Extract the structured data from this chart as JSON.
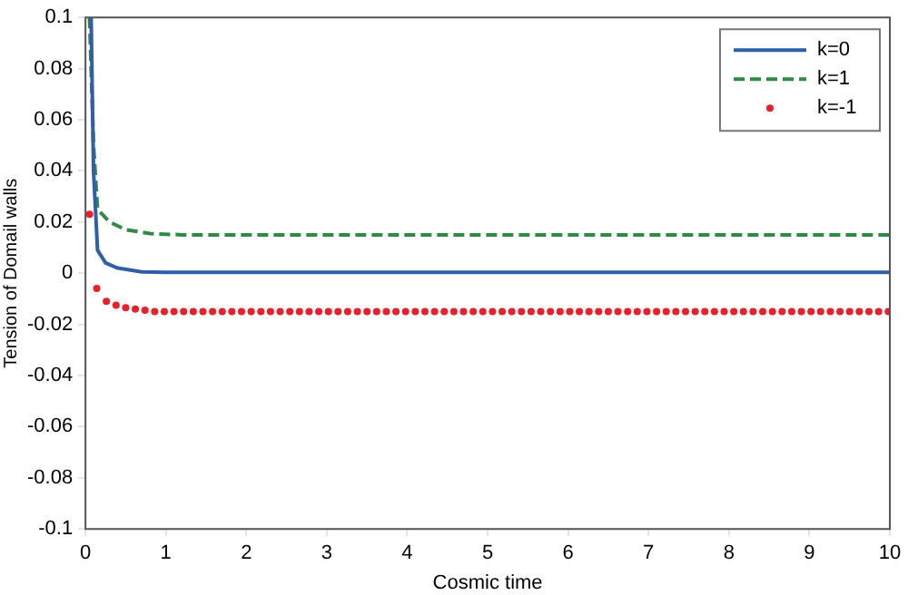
{
  "chart_data": {
    "type": "line",
    "xlabel": "Cosmic time",
    "ylabel": "Tension of Domail walls",
    "xlim": [
      0,
      10
    ],
    "ylim": [
      -0.1,
      0.1
    ],
    "xticks": [
      0,
      1,
      2,
      3,
      4,
      5,
      6,
      7,
      8,
      9,
      10
    ],
    "yticks": [
      -0.1,
      -0.08,
      -0.06,
      -0.04,
      -0.02,
      0,
      0.02,
      0.04,
      0.06,
      0.08,
      0.1
    ],
    "grid": false,
    "legend": "top right",
    "series": [
      {
        "name": "k=0",
        "color": "#2f5fa8",
        "line_style": "solid",
        "marker": "none",
        "x": [
          0.07,
          0.1,
          0.15,
          0.25,
          0.4,
          0.7,
          1,
          10
        ],
        "values": [
          0.1,
          0.04,
          0.009,
          0.004,
          0.002,
          0.0005,
          0.0003,
          0.0003
        ]
      },
      {
        "name": "k=1",
        "color": "#2e8b46",
        "line_style": "dashed",
        "marker": "none",
        "x": [
          0.05,
          0.1,
          0.15,
          0.3,
          0.5,
          0.8,
          1.2,
          10
        ],
        "values": [
          0.1,
          0.05,
          0.025,
          0.02,
          0.017,
          0.0155,
          0.015,
          0.015
        ]
      },
      {
        "name": "k=-1",
        "type": "scatter",
        "color": "#e8202a",
        "marker": "circle",
        "x": [
          0.05,
          0.14,
          0.26,
          0.38,
          0.5,
          0.62,
          0.74,
          0.86,
          0.98,
          1.1,
          1.22,
          1.34,
          1.46,
          1.58,
          1.7,
          1.82,
          1.94,
          2.06,
          2.18,
          2.3,
          2.42,
          2.54,
          2.66,
          2.78,
          2.9,
          3.02,
          3.14,
          3.26,
          3.38,
          3.5,
          3.62,
          3.74,
          3.86,
          3.98,
          4.1,
          4.22,
          4.34,
          4.46,
          4.58,
          4.7,
          4.82,
          4.94,
          5.06,
          5.18,
          5.3,
          5.42,
          5.54,
          5.66,
          5.78,
          5.9,
          6.02,
          6.14,
          6.26,
          6.38,
          6.5,
          6.62,
          6.74,
          6.86,
          6.98,
          7.1,
          7.22,
          7.34,
          7.46,
          7.58,
          7.7,
          7.82,
          7.94,
          8.06,
          8.18,
          8.3,
          8.42,
          8.54,
          8.66,
          8.78,
          8.9,
          9.02,
          9.14,
          9.26,
          9.38,
          9.5,
          9.62,
          9.74,
          9.86,
          9.98
        ],
        "values": [
          0.023,
          -0.006,
          -0.011,
          -0.0125,
          -0.0135,
          -0.014,
          -0.0145,
          -0.015,
          -0.015,
          -0.015,
          -0.015,
          -0.015,
          -0.015,
          -0.015,
          -0.015,
          -0.015,
          -0.015,
          -0.015,
          -0.015,
          -0.015,
          -0.015,
          -0.015,
          -0.015,
          -0.015,
          -0.015,
          -0.015,
          -0.015,
          -0.015,
          -0.015,
          -0.015,
          -0.015,
          -0.015,
          -0.015,
          -0.015,
          -0.015,
          -0.015,
          -0.015,
          -0.015,
          -0.015,
          -0.015,
          -0.015,
          -0.015,
          -0.015,
          -0.015,
          -0.015,
          -0.015,
          -0.015,
          -0.015,
          -0.015,
          -0.015,
          -0.015,
          -0.015,
          -0.015,
          -0.015,
          -0.015,
          -0.015,
          -0.015,
          -0.015,
          -0.015,
          -0.015,
          -0.015,
          -0.015,
          -0.015,
          -0.015,
          -0.015,
          -0.015,
          -0.015,
          -0.015,
          -0.015,
          -0.015,
          -0.015,
          -0.015,
          -0.015,
          -0.015,
          -0.015,
          -0.015,
          -0.015,
          -0.015,
          -0.015,
          -0.015,
          -0.015,
          -0.015,
          -0.015,
          -0.015
        ]
      }
    ]
  }
}
